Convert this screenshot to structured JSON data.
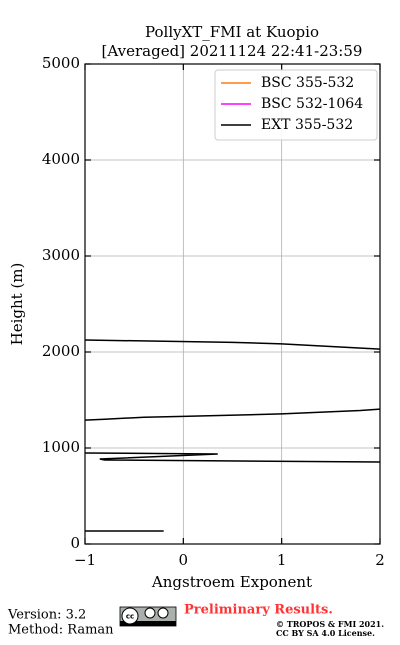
{
  "chart_data": {
    "type": "line",
    "title": "PollyXT_FMI at Kuopio",
    "subtitle": "[Averaged] 20211124 22:41-23:59",
    "xlabel": "Angstroem Exponent",
    "ylabel": "Height (m)",
    "xlim": [
      -1,
      2
    ],
    "xticks": [
      {
        "value": -1,
        "label": "−1"
      },
      0,
      1,
      2
    ],
    "ylim": [
      0,
      5000
    ],
    "yticks": [
      0,
      1000,
      2000,
      3000,
      4000,
      5000
    ],
    "grid": true,
    "legend": "upper right",
    "series": [
      {
        "name": "BSC 355-532",
        "color": "#ff7f0e",
        "x": [],
        "values": []
      },
      {
        "name": "BSC 532-1064",
        "color": "#ff00ff",
        "x": [],
        "values": []
      },
      {
        "name": "EXT 355-532",
        "color": "#000000",
        "x": [
          -1,
          -0.2,
          null,
          -1,
          0.35,
          -0.85,
          -0.8,
          2,
          null,
          -1,
          -0.8,
          -0.4,
          0,
          1,
          1.8,
          2,
          null,
          -1,
          0.5,
          1,
          2
        ],
        "values": [
          135,
          135,
          null,
          948,
          938,
          885,
          875,
          854,
          null,
          1290,
          1300,
          1320,
          1330,
          1355,
          1390,
          1405,
          null,
          2125,
          2100,
          2085,
          2030
        ]
      }
    ]
  },
  "footer": {
    "version": "Version: 3.2",
    "method": "Method: Raman",
    "preliminary": "Preliminary Results.",
    "copyright": "© TROPOS & FMI 2021.",
    "license": "CC BY SA 4.0 License."
  }
}
